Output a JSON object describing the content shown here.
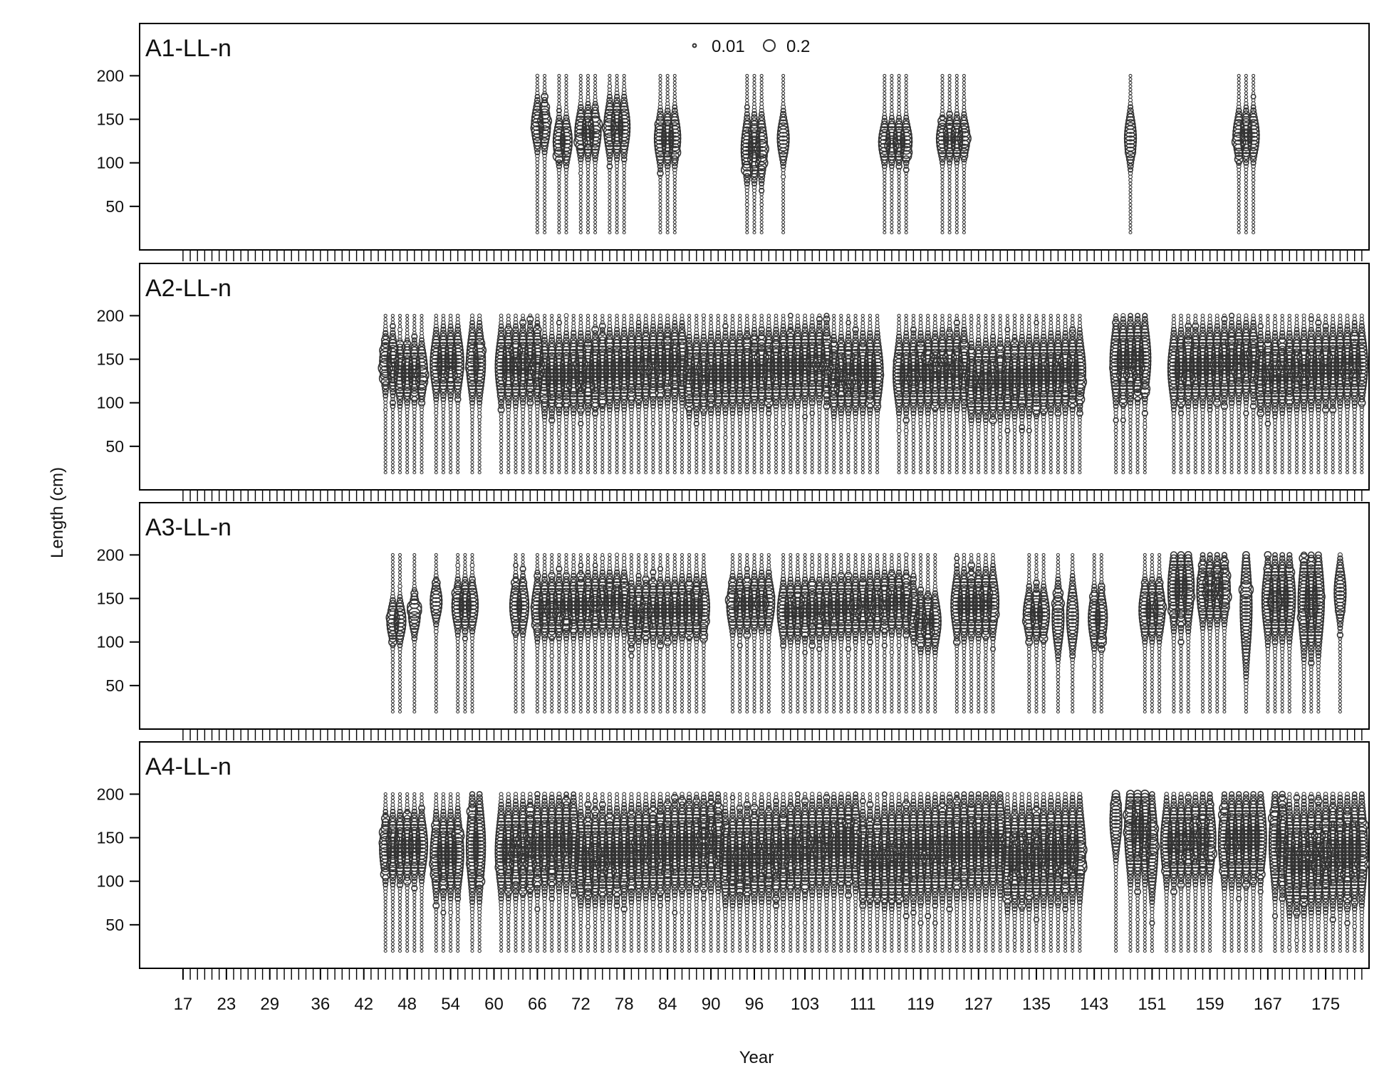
{
  "chart_data": {
    "type": "scatter",
    "subtype": "bubble-composition",
    "xlabel": "Year",
    "ylabel": "Length (cm)",
    "legend": {
      "placement": "top-center",
      "entries": [
        {
          "label": "0.01",
          "size": 0.01
        },
        {
          "label": "0.2",
          "size": 0.2
        }
      ]
    },
    "x_ticks": [
      17,
      23,
      29,
      36,
      42,
      48,
      54,
      60,
      66,
      72,
      78,
      84,
      90,
      96,
      103,
      111,
      119,
      127,
      135,
      143,
      151,
      159,
      167,
      175
    ],
    "xlim": [
      11,
      181
    ],
    "ylim": [
      0,
      260
    ],
    "y_ticks": [
      50,
      100,
      150,
      200
    ],
    "grid": false,
    "length_bins": {
      "min": 20,
      "max": 200,
      "step": 4
    },
    "panels": [
      {
        "name": "A1-LL-n",
        "groups": [
          {
            "years": [
              66,
              67
            ],
            "mean": 142,
            "sd": 14
          },
          {
            "years": [
              69,
              70
            ],
            "mean": 122,
            "sd": 13
          },
          {
            "years": [
              72,
              73,
              74
            ],
            "mean": 130,
            "sd": 14
          },
          {
            "years": [
              76,
              77,
              78
            ],
            "mean": 145,
            "sd": 16
          },
          {
            "years": [
              83,
              84,
              85
            ],
            "mean": 128,
            "sd": 15
          },
          {
            "years": [
              95,
              96,
              97
            ],
            "mean": 122,
            "sd": 18
          },
          {
            "years": [
              100
            ],
            "mean": 130,
            "sd": 14
          },
          {
            "years": [
              114,
              115,
              116,
              117
            ],
            "mean": 128,
            "sd": 12
          },
          {
            "years": [
              122,
              123,
              124,
              125
            ],
            "mean": 128,
            "sd": 12
          },
          {
            "years": [
              148
            ],
            "mean": 125,
            "sd": 16
          },
          {
            "years": [
              163,
              164,
              165
            ],
            "mean": 130,
            "sd": 14
          }
        ]
      },
      {
        "name": "A2-LL-n",
        "groups": [
          {
            "years": [
              45,
              46,
              47,
              48,
              49,
              50
            ],
            "mean": 140,
            "sd": 16
          },
          {
            "years": [
              52,
              53,
              54,
              55
            ],
            "mean": 148,
            "sd": 18
          },
          {
            "years": [
              57,
              58
            ],
            "mean": 145,
            "sd": 20
          },
          {
            "range": [
              61,
              113
            ],
            "mean": 138,
            "sd": 20
          },
          {
            "range": [
              116,
              141
            ],
            "mean": 132,
            "sd": 20
          },
          {
            "years": [
              146,
              147,
              148,
              149,
              150
            ],
            "mean": 155,
            "sd": 22
          },
          {
            "range": [
              154,
              180
            ],
            "mean": 140,
            "sd": 20
          }
        ]
      },
      {
        "name": "A3-LL-n",
        "groups": [
          {
            "years": [
              46,
              47
            ],
            "mean": 125,
            "sd": 12
          },
          {
            "years": [
              49
            ],
            "mean": 132,
            "sd": 12
          },
          {
            "years": [
              52
            ],
            "mean": 145,
            "sd": 12
          },
          {
            "years": [
              55,
              56,
              57
            ],
            "mean": 138,
            "sd": 14
          },
          {
            "years": [
              63,
              64
            ],
            "mean": 145,
            "sd": 15
          },
          {
            "range": [
              66,
              89
            ],
            "mean": 140,
            "sd": 16
          },
          {
            "range": [
              93,
              98
            ],
            "mean": 140,
            "sd": 15
          },
          {
            "range": [
              100,
              117
            ],
            "mean": 140,
            "sd": 16
          },
          {
            "range": [
              118,
              121
            ],
            "mean": 128,
            "sd": 15
          },
          {
            "years": [
              124,
              125,
              126,
              127,
              128,
              129
            ],
            "mean": 145,
            "sd": 18
          },
          {
            "years": [
              134,
              135,
              136
            ],
            "mean": 128,
            "sd": 14
          },
          {
            "years": [
              138,
              140
            ],
            "mean": 135,
            "sd": 20
          },
          {
            "years": [
              143,
              144
            ],
            "mean": 130,
            "sd": 16
          },
          {
            "years": [
              150,
              151,
              152
            ],
            "mean": 135,
            "sd": 16
          },
          {
            "years": [
              154,
              155,
              156
            ],
            "mean": 155,
            "sd": 22
          },
          {
            "years": [
              158,
              159,
              160,
              161
            ],
            "mean": 165,
            "sd": 18
          },
          {
            "years": [
              164
            ],
            "mean": 145,
            "sd": 35
          },
          {
            "years": [
              167,
              168,
              169,
              170
            ],
            "mean": 148,
            "sd": 22
          },
          {
            "years": [
              172,
              173,
              174
            ],
            "mean": 140,
            "sd": 28
          },
          {
            "years": [
              177
            ],
            "mean": 150,
            "sd": 18
          }
        ]
      },
      {
        "name": "A4-LL-n",
        "groups": [
          {
            "years": [
              45,
              46,
              47,
              48,
              49,
              50
            ],
            "mean": 135,
            "sd": 18
          },
          {
            "years": [
              52,
              53,
              54,
              55
            ],
            "mean": 138,
            "sd": 22
          },
          {
            "years": [
              57,
              58
            ],
            "mean": 145,
            "sd": 28
          },
          {
            "range": [
              61,
              113
            ],
            "mean": 135,
            "sd": 24
          },
          {
            "range": [
              114,
              141
            ],
            "mean": 135,
            "sd": 26
          },
          {
            "years": [
              146
            ],
            "mean": 165,
            "sd": 20
          },
          {
            "years": [
              148,
              149,
              150,
              151
            ],
            "mean": 150,
            "sd": 28
          },
          {
            "range": [
              153,
              159
            ],
            "mean": 150,
            "sd": 22
          },
          {
            "range": [
              161,
              166
            ],
            "mean": 145,
            "sd": 24
          },
          {
            "range": [
              168,
              180
            ],
            "mean": 135,
            "sd": 28
          }
        ]
      }
    ]
  }
}
